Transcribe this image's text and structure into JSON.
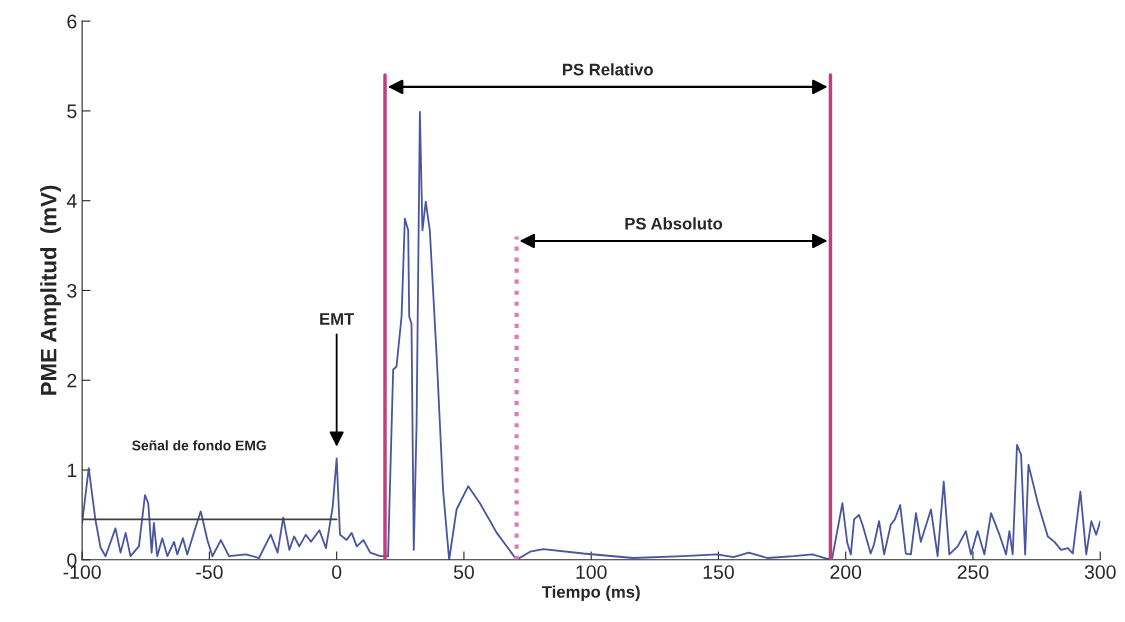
{
  "chart_data": {
    "type": "line",
    "xlabel": "Tiempo (ms)",
    "ylabel": "PME Amplitud  (mV)",
    "xlim": [
      -100,
      300
    ],
    "ylim": [
      0,
      6
    ],
    "xticks": [
      -100,
      -50,
      0,
      50,
      100,
      150,
      200,
      250,
      300
    ],
    "yticks": [
      0,
      1,
      2,
      3,
      4,
      5,
      6
    ],
    "grid": false,
    "legend": false,
    "series": [
      {
        "color": "#4a55a2",
        "line_style": "solid",
        "x": [
          -100,
          -97.4,
          -94.8,
          -92.8,
          -90.8,
          -86.9,
          -84.9,
          -82.9,
          -81,
          -77.7,
          -75.3,
          -74,
          -72.7,
          -71.8,
          -70.5,
          -68.5,
          -66.5,
          -63.9,
          -62.6,
          -60.4,
          -58.7,
          -56,
          -53.4,
          -50.8,
          -48.8,
          -45.5,
          -42.3,
          -35.7,
          -30.5,
          -25.9,
          -23.2,
          -21,
          -18.6,
          -16.7,
          -14.7,
          -12.1,
          -10.1,
          -6.8,
          -4.2,
          -1.6,
          0,
          1.3,
          3.9,
          5.9,
          7.9,
          10.5,
          13.2,
          17.1,
          20.2,
          22.2,
          23.5,
          25.5,
          26.8,
          28.1,
          28.5,
          29.4,
          30.3,
          31.4,
          32.7,
          33.7,
          35.0,
          36.6,
          39.3,
          41.8,
          44.2,
          47.1,
          51.7,
          56.3,
          62.9,
          70.7,
          76.0,
          81.2,
          96.9,
          116.5,
          136.2,
          149.5,
          155.9,
          161.9,
          169.2,
          179.6,
          186.9,
          192.8,
          194.7,
          198.7,
          200.6,
          202,
          203.3,
          205.2,
          206.6,
          209.8,
          211.1,
          213.1,
          215.1,
          217.7,
          219.3,
          221.4,
          223.6,
          225.6,
          227.6,
          229.5,
          233.5,
          236.1,
          238.5,
          240.7,
          244,
          247.2,
          249.2,
          251.8,
          254.5,
          257.1,
          260.4,
          263,
          264.3,
          265.6,
          267.3,
          268.9,
          270.5,
          271.8,
          275.5,
          279.4,
          282,
          284.6,
          287.3,
          289.2,
          292.2,
          294.5,
          296.5,
          298.4,
          300
        ],
        "values": [
          0.41,
          1.02,
          0.45,
          0.14,
          0.04,
          0.35,
          0.08,
          0.3,
          0.04,
          0.15,
          0.72,
          0.63,
          0.08,
          0.41,
          0.04,
          0.24,
          0.04,
          0.2,
          0.06,
          0.24,
          0.06,
          0.31,
          0.54,
          0.22,
          0.04,
          0.22,
          0.04,
          0.06,
          0.02,
          0.28,
          0.08,
          0.47,
          0.11,
          0.26,
          0.15,
          0.28,
          0.2,
          0.33,
          0.13,
          0.58,
          1.13,
          0.28,
          0.22,
          0.3,
          0.15,
          0.22,
          0.08,
          0.04,
          0.04,
          2.12,
          2.15,
          2.71,
          3.8,
          3.67,
          2.71,
          2.63,
          0.11,
          1.52,
          4.99,
          3.67,
          3.99,
          3.67,
          2.26,
          0.78,
          0,
          0.56,
          0.82,
          0.63,
          0.3,
          0,
          0.09,
          0.12,
          0.07,
          0.02,
          0.04,
          0.06,
          0.03,
          0.08,
          0.02,
          0.04,
          0.06,
          0.01,
          0.02,
          0.63,
          0.19,
          0.06,
          0.45,
          0.5,
          0.39,
          0.07,
          0.17,
          0.43,
          0.06,
          0.39,
          0.45,
          0.61,
          0.07,
          0.06,
          0.52,
          0.2,
          0.56,
          0.04,
          0.87,
          0.06,
          0.15,
          0.32,
          0.06,
          0.32,
          0.06,
          0.52,
          0.28,
          0.06,
          0.32,
          0.06,
          1.28,
          1.17,
          0.06,
          1.06,
          0.63,
          0.26,
          0.2,
          0.11,
          0.13,
          0.07,
          0.76,
          0.06,
          0.43,
          0.28,
          0.43
        ]
      },
      {
        "color": "#404040",
        "line_style": "solid",
        "x": [
          -100,
          0
        ],
        "values": [
          0.45,
          0.45
        ]
      },
      {
        "color": "#c0407f",
        "line_style": "solid",
        "x": [
          19,
          19
        ],
        "values": [
          0,
          5.4
        ]
      },
      {
        "color": "#e07ab8",
        "line_style": "dotted",
        "x": [
          70.7,
          70.7
        ],
        "values": [
          0,
          3.6
        ]
      },
      {
        "color": "#c0407f",
        "line_style": "solid",
        "x": [
          194,
          194
        ],
        "values": [
          0,
          5.4
        ]
      }
    ],
    "annotations": [
      "PS Relativo",
      "PS Absoluto",
      "EMT",
      "Señal de fondo EMG"
    ]
  }
}
